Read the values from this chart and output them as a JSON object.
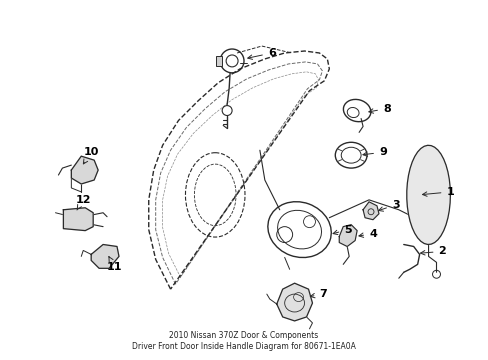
{
  "background_color": "#ffffff",
  "line_color": "#2a2a2a",
  "label_color": "#000000",
  "figsize": [
    4.89,
    3.6
  ],
  "dpi": 100,
  "title": "2010 Nissan 370Z Door & Components\nDriver Front Door Inside Handle Diagram for 80671-1EA0A",
  "title_fontsize": 5.5,
  "label_fontsize": 8,
  "label_arrow_lw": 0.7,
  "component_lw": 0.9
}
